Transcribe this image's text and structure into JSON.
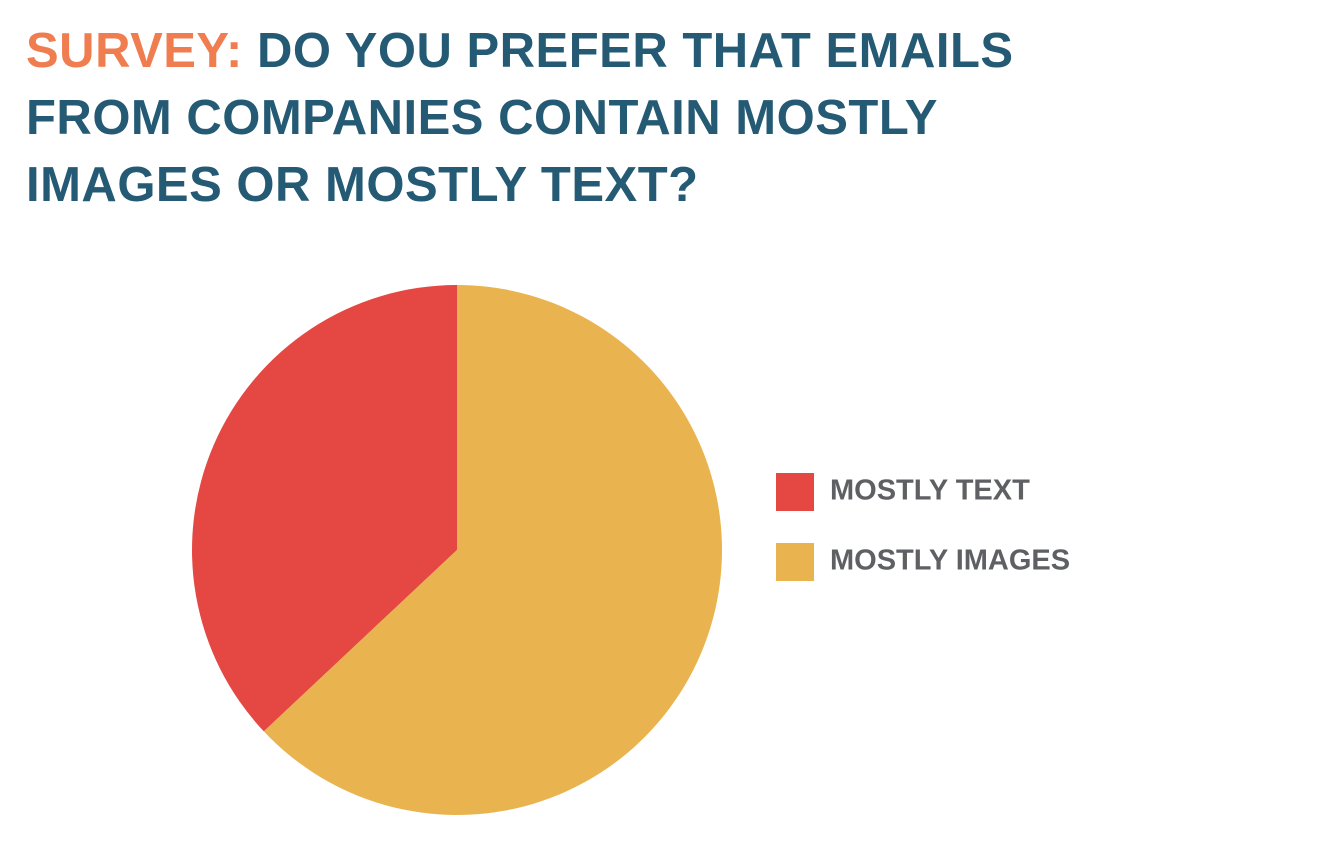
{
  "chart_data": {
    "type": "pie",
    "title_label": "SURVEY:",
    "title": "DO YOU PREFER THAT EMAILS FROM COMPANIES CONTAIN MOSTLY IMAGES OR MOSTLY TEXT?",
    "categories": [
      "MOSTLY TEXT",
      "MOSTLY IMAGES"
    ],
    "values": [
      37,
      63
    ],
    "colors": [
      "#e54843",
      "#e9b44f"
    ],
    "legend": "right"
  }
}
